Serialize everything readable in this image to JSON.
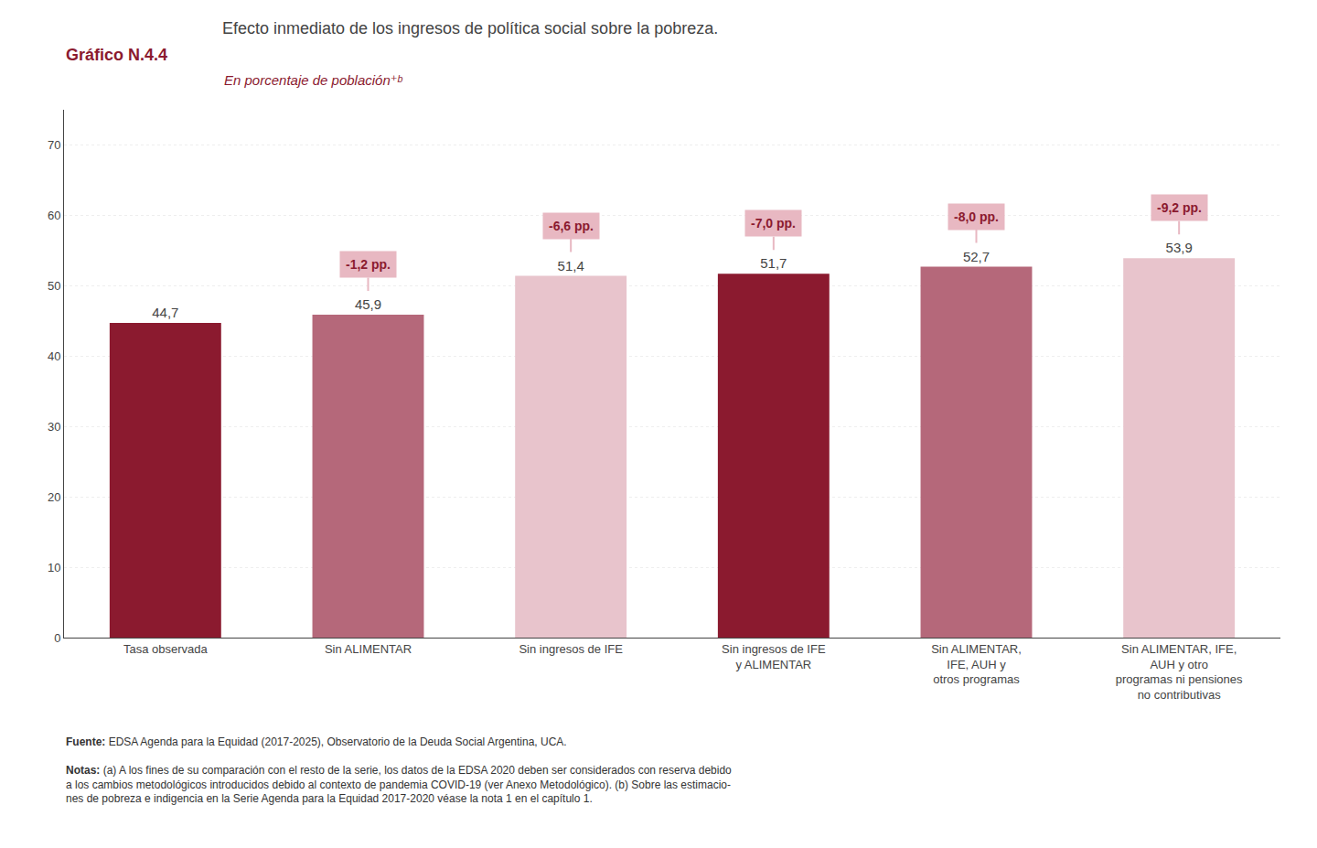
{
  "chart_data": {
    "type": "bar",
    "graph_label": "Gráfico N.4.4",
    "title": "Efecto inmediato de los ingresos de política social sobre la pobreza.",
    "subtitle": "En porcentaje de población⁺ᵇ",
    "categories": [
      "Tasa observada",
      "Sin ALIMENTAR",
      "Sin ingresos de IFE",
      "Sin ingresos de IFE\ny ALIMENTAR",
      "Sin ALIMENTAR,\nIFE, AUH y\notros programas",
      "Sin ALIMENTAR, IFE,\nAUH y otro\nprogramas ni pensiones\nno contributivas"
    ],
    "values": [
      44.7,
      45.9,
      51.4,
      51.7,
      52.7,
      53.9
    ],
    "value_labels": [
      "44,7",
      "45,9",
      "51,4",
      "51,7",
      "52,7",
      "53,9"
    ],
    "data_labels": true,
    "colors": [
      "#8B1A2F",
      "#B5687A",
      "#E8C4CC",
      "#8B1A2F",
      "#B5687A",
      "#E8C4CC"
    ],
    "annotations": [
      null,
      "-1,2 pp.",
      "-6,6 pp.",
      "-7,0 pp.",
      "-8,0 pp.",
      "-9,2 pp."
    ],
    "ylim": [
      0,
      75
    ],
    "yticks": [
      0,
      10,
      20,
      30,
      40,
      50,
      60,
      70
    ],
    "grid": true,
    "source_label": "Fuente:",
    "source": "EDSA Agenda para la Equidad (2017-2025), Observatorio de la Deuda Social Argentina, UCA.",
    "notes_label": "Notas:",
    "notes": [
      "(a) A los fines de su comparación con el resto de la serie, los datos de la EDSA 2020 deben ser considerados con reserva debido",
      "a los cambios metodológicos introducidos debido al contexto de pandemia COVID-19 (ver Anexo Metodológico). (b) Sobre las estimacio-",
      "nes de pobreza e indigencia en la Serie Agenda para la Equidad 2017-2020 véase la nota 1 en el capítulo 1."
    ]
  }
}
